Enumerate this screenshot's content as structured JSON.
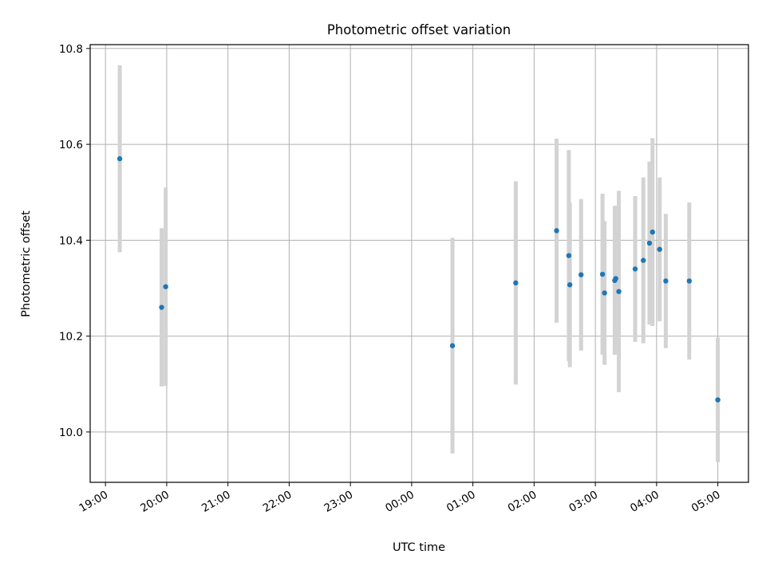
{
  "chart_data": {
    "type": "scatter",
    "title": "Photometric offset variation",
    "xlabel": "UTC time",
    "ylabel": "Photometric offset",
    "grid": true,
    "x_axis_type": "time",
    "x_range": [
      "18:45",
      "05:30"
    ],
    "ylim": [
      9.895,
      10.808
    ],
    "x_tick_labels": [
      "19:00",
      "20:00",
      "21:00",
      "22:00",
      "23:00",
      "00:00",
      "01:00",
      "02:00",
      "03:00",
      "04:00",
      "05:00"
    ],
    "y_ticks": [
      10.0,
      10.2,
      10.4,
      10.6,
      10.8
    ],
    "y_tick_labels": [
      "10.0",
      "10.2",
      "10.4",
      "10.6",
      "10.8"
    ],
    "colors": {
      "points": "#1f77b4",
      "errorbars": "#d3d3d3",
      "grid": "#b0b0b0"
    },
    "series": [
      {
        "points": [
          {
            "t": "19:14",
            "y": 10.57,
            "err": 0.195
          },
          {
            "t": "19:55",
            "y": 10.26,
            "err": 0.165
          },
          {
            "t": "19:59",
            "y": 10.303,
            "err": 0.207
          },
          {
            "t": "00:40",
            "y": 10.18,
            "err": 0.225
          },
          {
            "t": "01:42",
            "y": 10.311,
            "err": 0.212
          },
          {
            "t": "02:22",
            "y": 10.42,
            "err": 0.192
          },
          {
            "t": "02:34",
            "y": 10.368,
            "err": 0.22
          },
          {
            "t": "02:35",
            "y": 10.307,
            "err": 0.172
          },
          {
            "t": "02:46",
            "y": 10.328,
            "err": 0.158
          },
          {
            "t": "03:07",
            "y": 10.329,
            "err": 0.168
          },
          {
            "t": "03:09",
            "y": 10.29,
            "err": 0.15
          },
          {
            "t": "03:19",
            "y": 10.316,
            "err": 0.155
          },
          {
            "t": "03:20",
            "y": 10.32,
            "err": 0.152
          },
          {
            "t": "03:23",
            "y": 10.293,
            "err": 0.21
          },
          {
            "t": "03:39",
            "y": 10.34,
            "err": 0.152
          },
          {
            "t": "03:47",
            "y": 10.358,
            "err": 0.173
          },
          {
            "t": "03:53",
            "y": 10.394,
            "err": 0.17
          },
          {
            "t": "03:56",
            "y": 10.417,
            "err": 0.196
          },
          {
            "t": "04:03",
            "y": 10.381,
            "err": 0.15
          },
          {
            "t": "04:09",
            "y": 10.315,
            "err": 0.14
          },
          {
            "t": "04:32",
            "y": 10.315,
            "err": 0.164
          },
          {
            "t": "05:00",
            "y": 10.067,
            "err": 0.13
          }
        ]
      }
    ]
  }
}
